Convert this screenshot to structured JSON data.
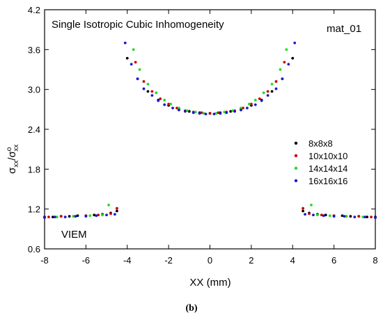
{
  "chart_data": {
    "type": "scatter",
    "title": "Single Isotropic Cubic Inhomogeneity",
    "annotation_right": "mat_01",
    "annotation_bottom": "VIEM",
    "caption": "(b)",
    "xlabel": "XX (mm)",
    "ylabel": "σ_xx/σ°_xx",
    "xlim": [
      -8,
      8
    ],
    "ylim": [
      0.6,
      4.2
    ],
    "xticks": [
      -8,
      -6,
      -4,
      -2,
      0,
      2,
      4,
      6,
      8
    ],
    "yticks": [
      0.6,
      1.2,
      1.8,
      2.4,
      3.0,
      3.6,
      4.2
    ],
    "xtick_labels": [
      "-8",
      "-6",
      "-4",
      "-2",
      "0",
      "2",
      "4",
      "6",
      "8"
    ],
    "ytick_labels": [
      "0.6",
      "1.2",
      "1.8",
      "2.4",
      "3.0",
      "3.6",
      "4.2"
    ],
    "grid": false,
    "legend_position": "right",
    "series": [
      {
        "name": "8x8x8",
        "color": "#000000",
        "points": [
          [
            -8,
            1.08
          ],
          [
            -7.6,
            1.08
          ],
          [
            -7.2,
            1.09
          ],
          [
            -6.8,
            1.09
          ],
          [
            -6.4,
            1.1
          ],
          [
            -6.0,
            1.1
          ],
          [
            -5.6,
            1.11
          ],
          [
            -5.2,
            1.12
          ],
          [
            -4.8,
            1.14
          ],
          [
            -4.5,
            1.17
          ],
          [
            -4.0,
            3.47
          ],
          [
            -3.5,
            3.16
          ],
          [
            -3.0,
            2.97
          ],
          [
            -2.5,
            2.84
          ],
          [
            -2.0,
            2.76
          ],
          [
            -1.5,
            2.7
          ],
          [
            -1.0,
            2.67
          ],
          [
            -0.5,
            2.65
          ],
          [
            0,
            2.64
          ],
          [
            0.5,
            2.65
          ],
          [
            1.0,
            2.67
          ],
          [
            1.5,
            2.7
          ],
          [
            2.0,
            2.76
          ],
          [
            2.5,
            2.84
          ],
          [
            3.0,
            2.97
          ],
          [
            3.5,
            3.16
          ],
          [
            4.0,
            3.47
          ],
          [
            4.5,
            1.17
          ],
          [
            4.8,
            1.14
          ],
          [
            5.2,
            1.12
          ],
          [
            5.6,
            1.11
          ],
          [
            6.0,
            1.1
          ],
          [
            6.4,
            1.1
          ],
          [
            6.8,
            1.09
          ],
          [
            7.2,
            1.09
          ],
          [
            7.6,
            1.08
          ],
          [
            8,
            1.08
          ]
        ]
      },
      {
        "name": "10x10x10",
        "color": "#cc0000",
        "points": [
          [
            -7.8,
            1.08
          ],
          [
            -7.2,
            1.09
          ],
          [
            -6.6,
            1.09
          ],
          [
            -6.0,
            1.1
          ],
          [
            -5.4,
            1.11
          ],
          [
            -4.8,
            1.13
          ],
          [
            -4.5,
            1.21
          ],
          [
            -3.6,
            3.41
          ],
          [
            -3.2,
            3.12
          ],
          [
            -2.8,
            2.97
          ],
          [
            -2.4,
            2.86
          ],
          [
            -2.0,
            2.78
          ],
          [
            -1.6,
            2.72
          ],
          [
            -1.2,
            2.68
          ],
          [
            -0.8,
            2.66
          ],
          [
            -0.4,
            2.65
          ],
          [
            0,
            2.64
          ],
          [
            0.4,
            2.65
          ],
          [
            0.8,
            2.66
          ],
          [
            1.2,
            2.68
          ],
          [
            1.6,
            2.72
          ],
          [
            2.0,
            2.78
          ],
          [
            2.4,
            2.86
          ],
          [
            2.8,
            2.97
          ],
          [
            3.2,
            3.12
          ],
          [
            3.6,
            3.41
          ],
          [
            4.5,
            1.21
          ],
          [
            4.8,
            1.13
          ],
          [
            5.4,
            1.11
          ],
          [
            6.0,
            1.1
          ],
          [
            6.6,
            1.09
          ],
          [
            7.2,
            1.09
          ],
          [
            7.8,
            1.08
          ]
        ]
      },
      {
        "name": "14x14x14",
        "color": "#22dd22",
        "points": [
          [
            -7.4,
            1.08
          ],
          [
            -6.6,
            1.09
          ],
          [
            -5.8,
            1.1
          ],
          [
            -5.2,
            1.11
          ],
          [
            -4.9,
            1.26
          ],
          [
            -3.7,
            3.6
          ],
          [
            -3.4,
            3.3
          ],
          [
            -3.0,
            3.08
          ],
          [
            -2.6,
            2.95
          ],
          [
            -2.2,
            2.84
          ],
          [
            -1.9,
            2.78
          ],
          [
            -1.5,
            2.72
          ],
          [
            -1.1,
            2.68
          ],
          [
            -0.7,
            2.66
          ],
          [
            -0.3,
            2.64
          ],
          [
            0.3,
            2.64
          ],
          [
            0.7,
            2.66
          ],
          [
            1.1,
            2.68
          ],
          [
            1.5,
            2.72
          ],
          [
            1.9,
            2.78
          ],
          [
            2.2,
            2.84
          ],
          [
            2.6,
            2.95
          ],
          [
            3.0,
            3.08
          ],
          [
            3.4,
            3.3
          ],
          [
            3.7,
            3.6
          ],
          [
            4.9,
            1.26
          ],
          [
            5.2,
            1.11
          ],
          [
            5.8,
            1.1
          ],
          [
            6.6,
            1.09
          ],
          [
            7.4,
            1.08
          ]
        ]
      },
      {
        "name": "16x16x16",
        "color": "#1a1acc",
        "points": [
          [
            -8,
            1.07
          ],
          [
            -7.5,
            1.08
          ],
          [
            -7.0,
            1.08
          ],
          [
            -6.5,
            1.09
          ],
          [
            -6.0,
            1.09
          ],
          [
            -5.5,
            1.1
          ],
          [
            -5.0,
            1.11
          ],
          [
            -4.6,
            1.12
          ],
          [
            -4.1,
            3.7
          ],
          [
            -3.8,
            3.38
          ],
          [
            -3.5,
            3.16
          ],
          [
            -3.2,
            3.01
          ],
          [
            -2.8,
            2.91
          ],
          [
            -2.5,
            2.83
          ],
          [
            -2.2,
            2.77
          ],
          [
            -1.8,
            2.72
          ],
          [
            -1.5,
            2.69
          ],
          [
            -1.2,
            2.67
          ],
          [
            -0.8,
            2.65
          ],
          [
            -0.5,
            2.64
          ],
          [
            -0.2,
            2.63
          ],
          [
            0.2,
            2.63
          ],
          [
            0.5,
            2.64
          ],
          [
            0.8,
            2.65
          ],
          [
            1.2,
            2.67
          ],
          [
            1.5,
            2.69
          ],
          [
            1.8,
            2.72
          ],
          [
            2.2,
            2.77
          ],
          [
            2.5,
            2.83
          ],
          [
            2.8,
            2.91
          ],
          [
            3.2,
            3.01
          ],
          [
            3.5,
            3.16
          ],
          [
            3.8,
            3.38
          ],
          [
            4.1,
            3.7
          ],
          [
            4.6,
            1.12
          ],
          [
            5.0,
            1.11
          ],
          [
            5.5,
            1.1
          ],
          [
            6.0,
            1.09
          ],
          [
            6.5,
            1.09
          ],
          [
            7.0,
            1.08
          ],
          [
            7.5,
            1.08
          ],
          [
            8,
            1.07
          ]
        ]
      }
    ]
  }
}
